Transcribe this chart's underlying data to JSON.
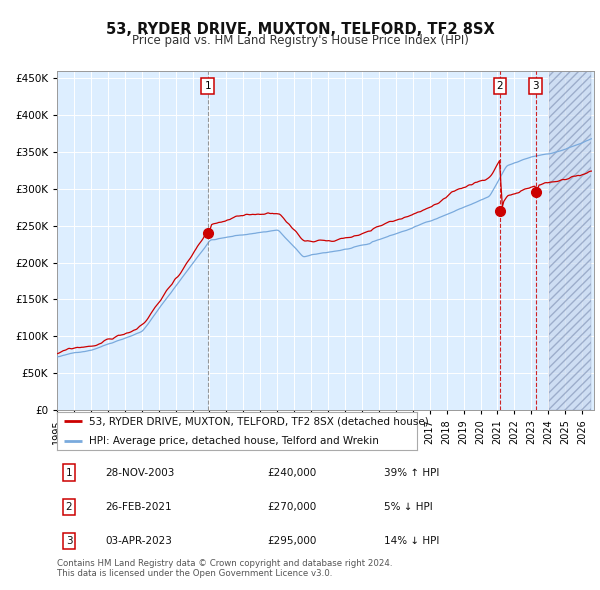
{
  "title": "53, RYDER DRIVE, MUXTON, TELFORD, TF2 8SX",
  "subtitle": "Price paid vs. HM Land Registry's House Price Index (HPI)",
  "legend_line1": "53, RYDER DRIVE, MUXTON, TELFORD, TF2 8SX (detached house)",
  "legend_line2": "HPI: Average price, detached house, Telford and Wrekin",
  "transactions": [
    {
      "label": "1",
      "date": "28-NOV-2003",
      "price": 240000,
      "pct": "39%",
      "dir": "↑",
      "x_year": 2003.91
    },
    {
      "label": "2",
      "date": "26-FEB-2021",
      "price": 270000,
      "pct": "5%",
      "dir": "↓",
      "x_year": 2021.15
    },
    {
      "label": "3",
      "date": "03-APR-2023",
      "price": 295000,
      "pct": "14%",
      "dir": "↓",
      "x_year": 2023.25
    }
  ],
  "hpi_color": "#7aaadd",
  "price_color": "#cc0000",
  "background_color": "#ddeeff",
  "grid_color": "#ffffff",
  "ylim": [
    0,
    460000
  ],
  "xlim_start": 1995.0,
  "xlim_end": 2026.7,
  "hatch_start": 2024.0,
  "footnote": "Contains HM Land Registry data © Crown copyright and database right 2024.\nThis data is licensed under the Open Government Licence v3.0.",
  "table_entries": [
    {
      "label": "1",
      "date": "28-NOV-2003",
      "price": "£240,000",
      "pct": "39% ↑ HPI"
    },
    {
      "label": "2",
      "date": "26-FEB-2021",
      "price": "£270,000",
      "pct": "5% ↓ HPI"
    },
    {
      "label": "3",
      "date": "03-APR-2023",
      "price": "£295,000",
      "pct": "14% ↓ HPI"
    }
  ]
}
